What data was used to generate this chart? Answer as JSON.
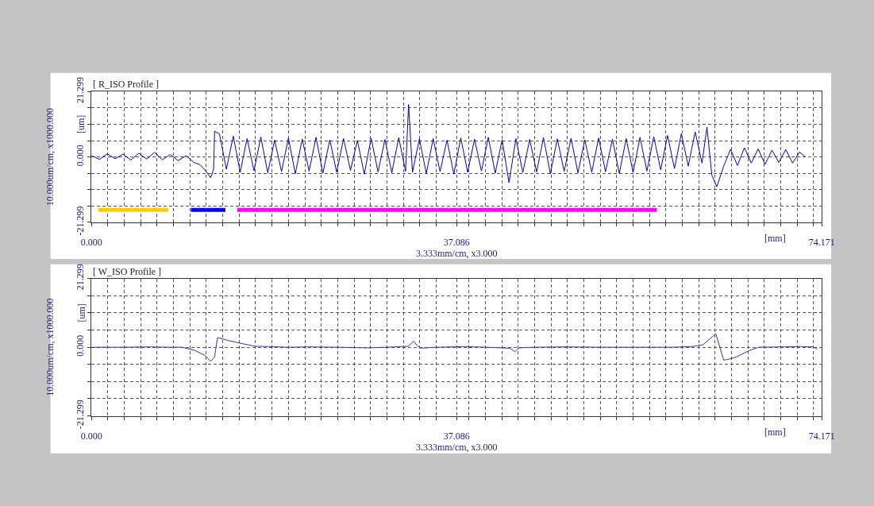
{
  "chart_data": [
    {
      "type": "line",
      "title": "[ R_ISO Profile ]",
      "xlabel": "3.333mm/cm, x3.000",
      "ylabel": "10.000um/cm, x1000.000",
      "annotations": [
        "[mm]",
        "[um]"
      ],
      "xlim": [
        0,
        74.171
      ],
      "ylim": [
        -21.299,
        21.299
      ],
      "xticks": [
        {
          "value": 0,
          "label": "0.000"
        },
        {
          "value": 1.667,
          "label": null
        },
        {
          "value": 3.333,
          "label": null
        },
        {
          "value": 5.0,
          "label": null
        },
        {
          "value": 6.667,
          "label": null
        },
        {
          "value": 8.333,
          "label": null
        },
        {
          "value": 10.0,
          "label": null
        },
        {
          "value": 11.667,
          "label": null
        },
        {
          "value": 13.333,
          "label": null
        },
        {
          "value": 15.0,
          "label": null
        },
        {
          "value": 16.667,
          "label": null
        },
        {
          "value": 18.333,
          "label": null
        },
        {
          "value": 20.0,
          "label": null
        },
        {
          "value": 21.667,
          "label": null
        },
        {
          "value": 23.333,
          "label": null
        },
        {
          "value": 25.0,
          "label": null
        },
        {
          "value": 26.667,
          "label": null
        },
        {
          "value": 28.333,
          "label": null
        },
        {
          "value": 30.0,
          "label": null
        },
        {
          "value": 31.667,
          "label": null
        },
        {
          "value": 33.333,
          "label": null
        },
        {
          "value": 35.0,
          "label": null
        },
        {
          "value": 37.086,
          "label": "37.086"
        },
        {
          "value": 38.333,
          "label": null
        },
        {
          "value": 40.0,
          "label": null
        },
        {
          "value": 41.667,
          "label": null
        },
        {
          "value": 43.333,
          "label": null
        },
        {
          "value": 45.0,
          "label": null
        },
        {
          "value": 46.667,
          "label": null
        },
        {
          "value": 48.333,
          "label": null
        },
        {
          "value": 50.0,
          "label": null
        },
        {
          "value": 51.667,
          "label": null
        },
        {
          "value": 53.333,
          "label": null
        },
        {
          "value": 55.0,
          "label": null
        },
        {
          "value": 56.667,
          "label": null
        },
        {
          "value": 58.333,
          "label": null
        },
        {
          "value": 60.0,
          "label": null
        },
        {
          "value": 61.667,
          "label": null
        },
        {
          "value": 63.333,
          "label": null
        },
        {
          "value": 65.0,
          "label": null
        },
        {
          "value": 66.667,
          "label": null
        },
        {
          "value": 68.333,
          "label": null
        },
        {
          "value": 70.0,
          "label": null
        },
        {
          "value": 71.667,
          "label": null
        },
        {
          "value": 73.333,
          "label": null
        },
        {
          "value": 74.171,
          "label": "74.171"
        }
      ],
      "yticks": [
        {
          "value": -21.299,
          "label": "-21.299"
        },
        {
          "value": -15.974,
          "label": null
        },
        {
          "value": -10.649,
          "label": null
        },
        {
          "value": -5.325,
          "label": null
        },
        {
          "value": 0,
          "label": "0.000"
        },
        {
          "value": 5.325,
          "label": null
        },
        {
          "value": 10.649,
          "label": null
        },
        {
          "value": 15.974,
          "label": null
        },
        {
          "value": 21.299,
          "label": "21.299"
        }
      ],
      "grid": true,
      "series": [
        {
          "color": "#0000cc",
          "x": [
            0,
            0.8,
            1.6,
            2.4,
            3.2,
            4.0,
            4.8,
            5.6,
            6.4,
            7.2,
            8.0,
            8.8,
            9.6,
            10.4,
            11.0,
            11.6,
            12.1,
            12.4,
            12.5,
            13.0,
            13.7,
            14.4,
            15.1,
            15.8,
            16.5,
            17.2,
            17.9,
            18.6,
            19.3,
            20.0,
            20.7,
            21.4,
            22.1,
            22.8,
            23.5,
            24.2,
            24.9,
            25.6,
            26.3,
            27.0,
            27.7,
            28.4,
            29.1,
            29.8,
            30.5,
            31.2,
            31.9,
            32.2,
            32.6,
            33.3,
            34.0,
            34.7,
            35.4,
            36.1,
            36.8,
            37.5,
            38.2,
            38.9,
            39.6,
            40.3,
            41.0,
            41.7,
            42.4,
            43.1,
            43.8,
            44.5,
            45.2,
            45.9,
            46.6,
            47.3,
            48.0,
            48.7,
            49.4,
            50.1,
            50.8,
            51.5,
            52.2,
            52.9,
            53.6,
            54.3,
            55.0,
            55.7,
            56.4,
            57.1,
            57.8,
            58.5,
            59.2,
            59.9,
            60.6,
            61.3,
            62.0,
            62.5,
            63.0,
            63.5,
            64.2,
            64.9,
            65.6,
            66.3,
            67.0,
            67.7,
            68.4,
            69.1,
            69.8,
            70.5,
            71.2,
            71.9,
            72.5
          ],
          "values": [
            0.5,
            -0.8,
            1.0,
            -0.6,
            0.9,
            -1.0,
            1.2,
            -0.7,
            1.5,
            -0.9,
            0.8,
            -1.2,
            0.4,
            -1.8,
            -2.5,
            -4.5,
            -6.8,
            -4.0,
            8.4,
            7.5,
            -4.0,
            6.8,
            -5.0,
            6.0,
            -4.5,
            6.5,
            -5.2,
            5.5,
            -4.8,
            6.2,
            -5.5,
            5.8,
            -4.6,
            6.4,
            -5.3,
            5.6,
            -5.0,
            6.0,
            -4.4,
            5.4,
            -5.6,
            6.1,
            -4.9,
            5.7,
            -5.2,
            6.3,
            -4.7,
            17.1,
            -5.0,
            5.9,
            -5.4,
            6.0,
            -4.8,
            5.5,
            -5.6,
            6.2,
            -5.0,
            5.8,
            -4.6,
            6.4,
            -5.3,
            5.6,
            -8.4,
            6.0,
            -5.1,
            5.7,
            -4.9,
            6.3,
            -5.5,
            5.9,
            -4.7,
            6.1,
            -5.2,
            5.6,
            -5.0,
            6.2,
            -4.8,
            5.8,
            -5.4,
            6.0,
            -5.1,
            6.4,
            -4.6,
            6.6,
            -4.2,
            7.0,
            -3.8,
            7.6,
            -3.0,
            8.2,
            -2.0,
            9.7,
            -6.0,
            -9.7,
            -3.0,
            2.5,
            -2.8,
            3.0,
            -2.0,
            2.6,
            -2.4,
            2.2,
            -1.8,
            2.4,
            -2.0,
            1.6,
            0.0
          ]
        },
        {
          "color": "#ffcc00",
          "x": [
            0.7,
            7.8
          ],
          "values": [
            -17.3,
            -17.3
          ]
        },
        {
          "color": "#0000ff",
          "x": [
            10.1,
            13.6
          ],
          "values": [
            -17.3,
            -17.3
          ]
        },
        {
          "color": "#ff00ff",
          "x": [
            14.8,
            57.4
          ],
          "values": [
            -17.3,
            -17.3
          ]
        }
      ]
    },
    {
      "type": "line",
      "title": "[ W_ISO Profile ]",
      "xlabel": "3.333mm/cm, x3.000",
      "ylabel": "10.000um/cm, x1000.000",
      "annotations": [
        "[mm]",
        "[um]"
      ],
      "xlim": [
        0,
        74.171
      ],
      "ylim": [
        -21.299,
        21.299
      ],
      "xticks": [
        {
          "value": 0,
          "label": "0.000"
        },
        {
          "value": 1.667,
          "label": null
        },
        {
          "value": 3.333,
          "label": null
        },
        {
          "value": 5.0,
          "label": null
        },
        {
          "value": 6.667,
          "label": null
        },
        {
          "value": 8.333,
          "label": null
        },
        {
          "value": 10.0,
          "label": null
        },
        {
          "value": 11.667,
          "label": null
        },
        {
          "value": 13.333,
          "label": null
        },
        {
          "value": 15.0,
          "label": null
        },
        {
          "value": 16.667,
          "label": null
        },
        {
          "value": 18.333,
          "label": null
        },
        {
          "value": 20.0,
          "label": null
        },
        {
          "value": 21.667,
          "label": null
        },
        {
          "value": 23.333,
          "label": null
        },
        {
          "value": 25.0,
          "label": null
        },
        {
          "value": 26.667,
          "label": null
        },
        {
          "value": 28.333,
          "label": null
        },
        {
          "value": 30.0,
          "label": null
        },
        {
          "value": 31.667,
          "label": null
        },
        {
          "value": 33.333,
          "label": null
        },
        {
          "value": 35.0,
          "label": null
        },
        {
          "value": 37.086,
          "label": "37.086"
        },
        {
          "value": 38.333,
          "label": null
        },
        {
          "value": 40.0,
          "label": null
        },
        {
          "value": 41.667,
          "label": null
        },
        {
          "value": 43.333,
          "label": null
        },
        {
          "value": 45.0,
          "label": null
        },
        {
          "value": 46.667,
          "label": null
        },
        {
          "value": 48.333,
          "label": null
        },
        {
          "value": 50.0,
          "label": null
        },
        {
          "value": 51.667,
          "label": null
        },
        {
          "value": 53.333,
          "label": null
        },
        {
          "value": 55.0,
          "label": null
        },
        {
          "value": 56.667,
          "label": null
        },
        {
          "value": 58.333,
          "label": null
        },
        {
          "value": 60.0,
          "label": null
        },
        {
          "value": 61.667,
          "label": null
        },
        {
          "value": 63.333,
          "label": null
        },
        {
          "value": 65.0,
          "label": null
        },
        {
          "value": 66.667,
          "label": null
        },
        {
          "value": 68.333,
          "label": null
        },
        {
          "value": 70.0,
          "label": null
        },
        {
          "value": 71.667,
          "label": null
        },
        {
          "value": 73.333,
          "label": null
        },
        {
          "value": 74.171,
          "label": "74.171"
        }
      ],
      "yticks": [
        {
          "value": -21.299,
          "label": "-21.299"
        },
        {
          "value": -15.974,
          "label": null
        },
        {
          "value": -10.649,
          "label": null
        },
        {
          "value": -5.325,
          "label": null
        },
        {
          "value": 0,
          "label": "0.000"
        },
        {
          "value": 5.325,
          "label": null
        },
        {
          "value": 10.649,
          "label": null
        },
        {
          "value": 15.974,
          "label": null
        },
        {
          "value": 21.299,
          "label": "21.299"
        }
      ],
      "grid": true,
      "series": [
        {
          "color": "#3333aa",
          "x": [
            0,
            3,
            6,
            8,
            9.2,
            10.5,
            11.5,
            12.1,
            12.5,
            12.8,
            14.0,
            15.5,
            16.6,
            18,
            20,
            22,
            25,
            28,
            30,
            32.2,
            32.7,
            33.1,
            33.5,
            35,
            38,
            40,
            42.5,
            43.0,
            43.4,
            45,
            48,
            52,
            56,
            59,
            61.0,
            62.1,
            63.4,
            64.2,
            64.6,
            65.5,
            66.8,
            67.8,
            70,
            72,
            73.3,
            73.7
          ],
          "values": [
            0,
            0,
            0.1,
            0,
            0,
            -1.0,
            -2.5,
            -4.4,
            -3.0,
            3.0,
            2.0,
            1.0,
            0.3,
            0.2,
            0,
            0.1,
            0,
            -0.2,
            0,
            0.3,
            1.9,
            0.4,
            -0.3,
            0,
            0.2,
            0,
            -0.3,
            -1.4,
            -0.2,
            0,
            0.1,
            0,
            0,
            0,
            0.2,
            0.8,
            4.2,
            -4.0,
            -3.8,
            -3.0,
            -1.0,
            0,
            0.1,
            0.2,
            0.1,
            -0.6
          ]
        }
      ]
    }
  ]
}
